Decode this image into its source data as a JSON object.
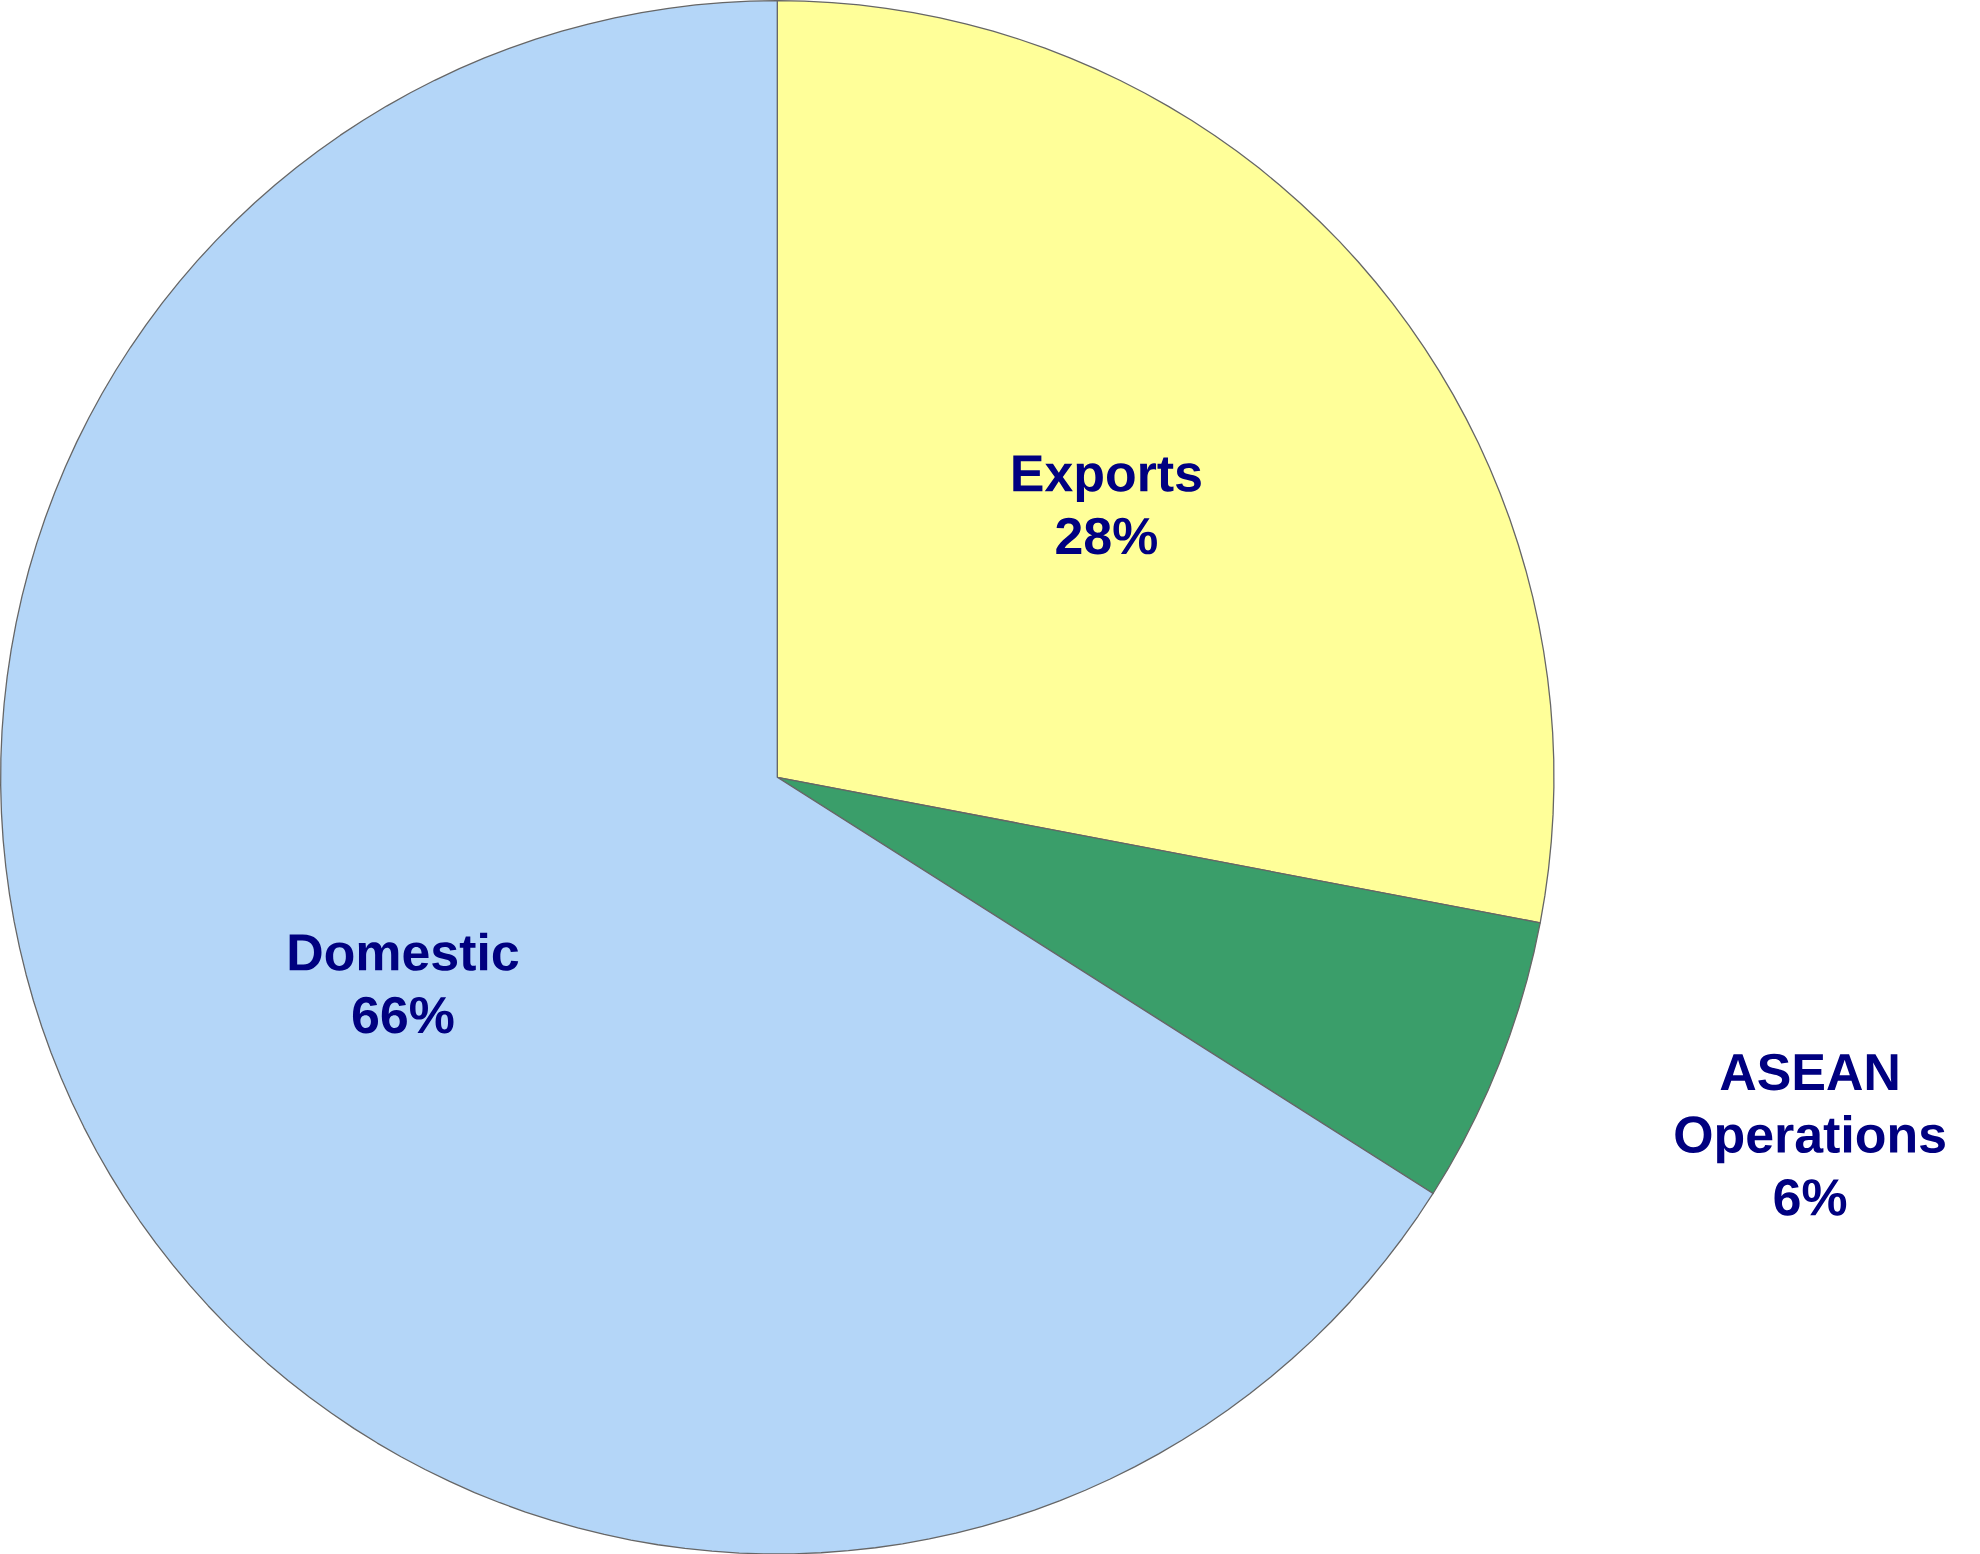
{
  "chart_data": {
    "type": "pie",
    "categories": [
      "Exports",
      "ASEAN Operations",
      "Domestic"
    ],
    "values": [
      28,
      6,
      66
    ],
    "value_labels": [
      "28%",
      "6%",
      "66%"
    ],
    "colors": [
      "#ffff99",
      "#3a9e6a",
      "#b4d6f8"
    ]
  }
}
